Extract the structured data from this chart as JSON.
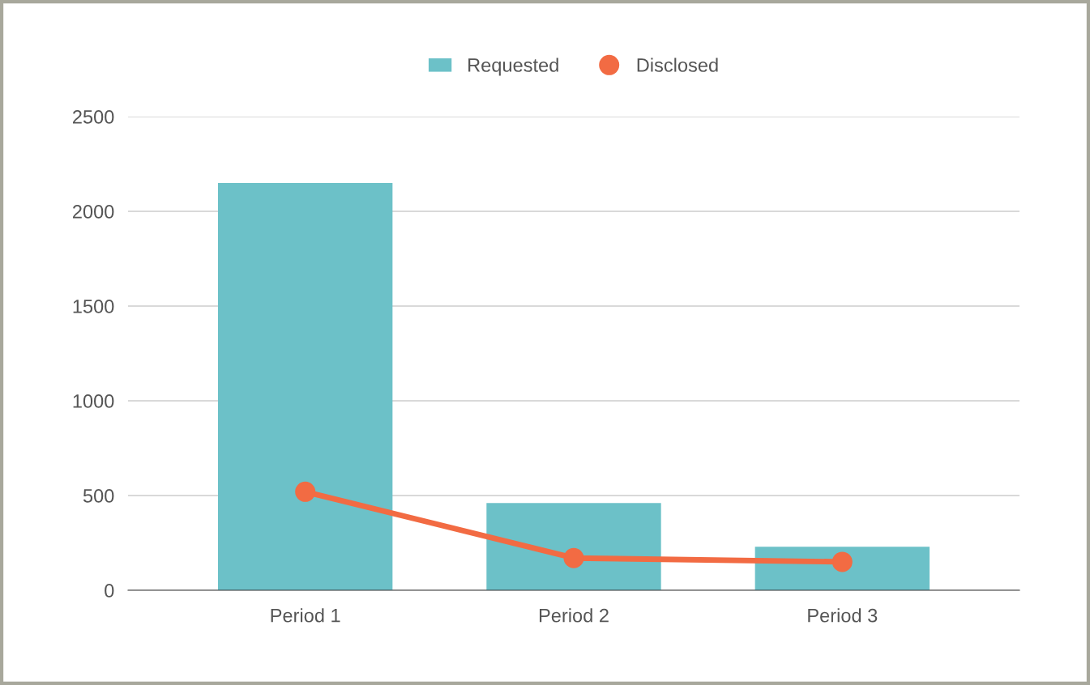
{
  "chart_data": {
    "type": "bar",
    "categories": [
      "Period 1",
      "Period 2",
      "Period 3"
    ],
    "series": [
      {
        "name": "Requested",
        "color": "#6cc1c8",
        "values": [
          2150,
          460,
          230
        ]
      },
      {
        "name": "Disclosed",
        "type": "line",
        "color": "#f26b43",
        "values": [
          520,
          170,
          150
        ],
        "marker": "circle"
      }
    ],
    "ylim": [
      0,
      2500
    ],
    "yticks": [
      0,
      500,
      1000,
      1500,
      2000,
      2500
    ],
    "grid": "y",
    "legend": "top"
  }
}
